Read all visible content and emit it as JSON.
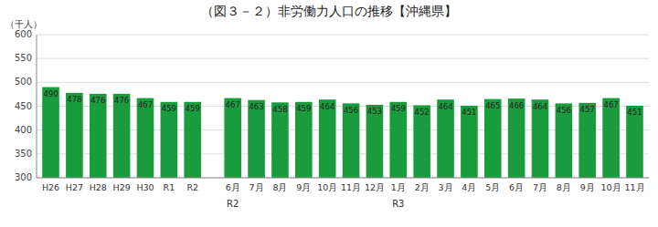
{
  "chart_data": {
    "type": "bar",
    "title": "（図３－２）非労働力人口の推移【沖縄県】",
    "y_label": "（千人）",
    "categories": [
      "H26",
      "H27",
      "H28",
      "H29",
      "H30",
      "R1",
      "R2",
      "6月",
      "7月",
      "8月",
      "9月",
      "10月",
      "11月",
      "12月",
      "1月",
      "2月",
      "3月",
      "4月",
      "5月",
      "6月",
      "7月",
      "8月",
      "9月",
      "10月",
      "11月"
    ],
    "values": [
      490,
      478,
      476,
      476,
      467,
      459,
      459,
      467,
      463,
      458,
      459,
      464,
      456,
      453,
      459,
      452,
      464,
      451,
      465,
      466,
      464,
      456,
      457,
      467,
      451
    ],
    "color": "#1a9c3e",
    "ylim": [
      300,
      600
    ],
    "yticks": [
      300,
      350,
      400,
      450,
      500,
      550,
      600
    ],
    "grid": true,
    "data_labels": true,
    "annotations": [
      {
        "text": "R2",
        "category_index": 7
      },
      {
        "text": "R3",
        "category_index": 14
      }
    ]
  }
}
